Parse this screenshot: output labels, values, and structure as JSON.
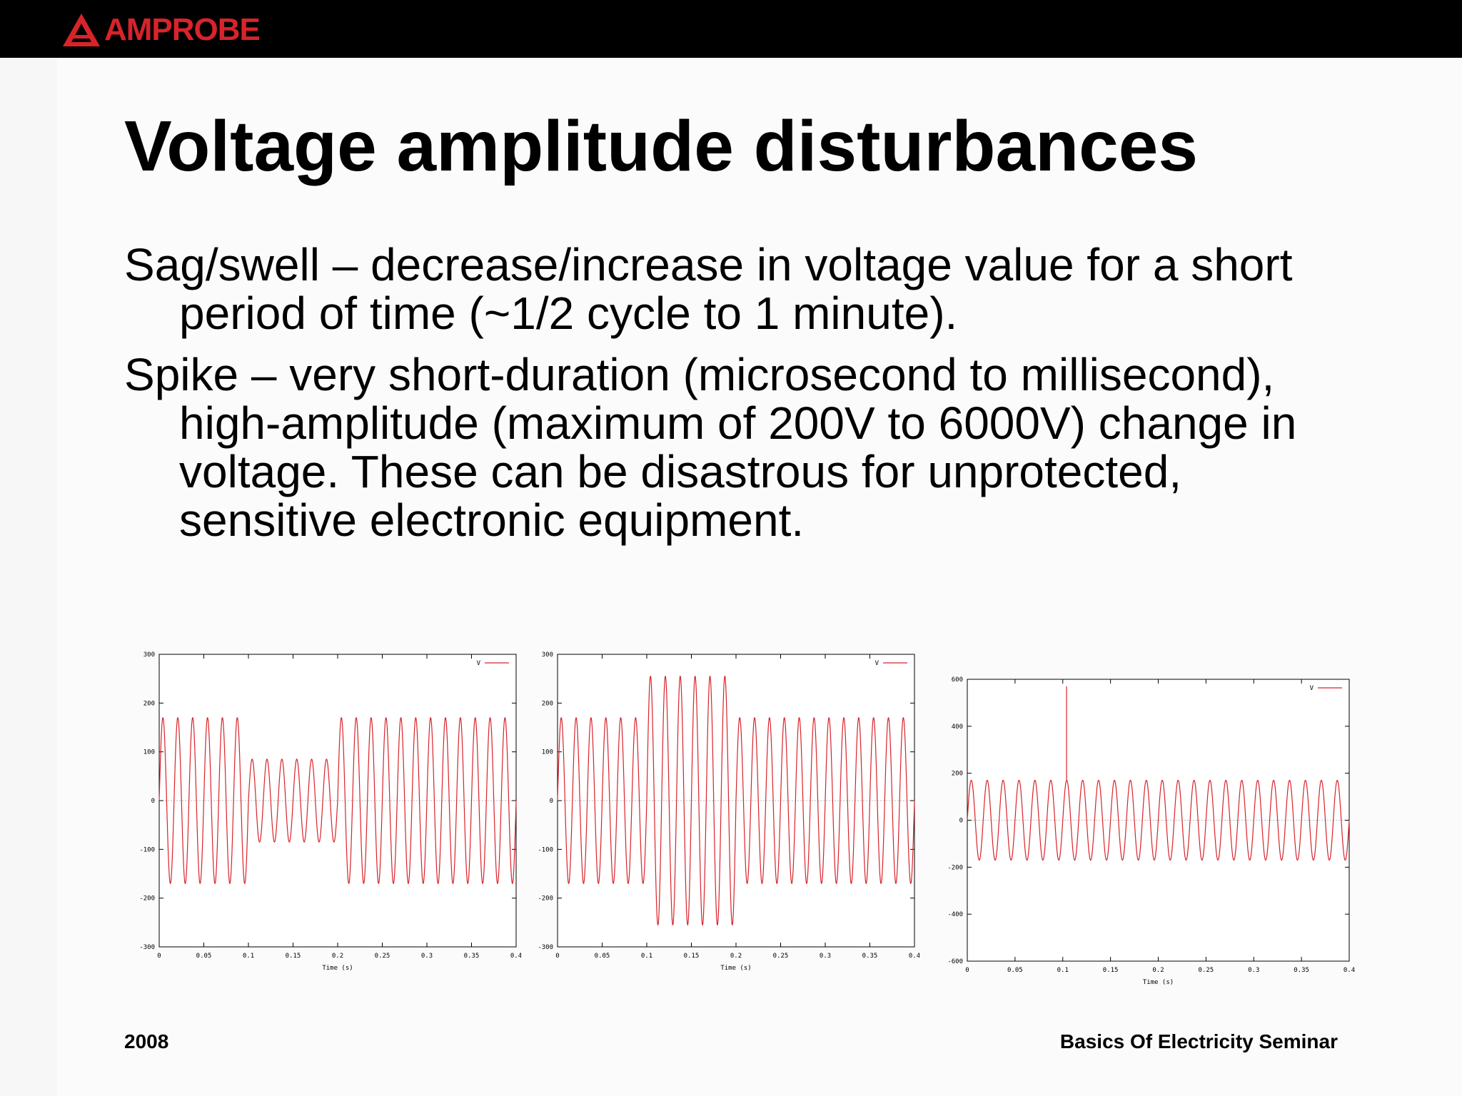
{
  "header": {
    "logo_text": "AMPROBE",
    "brand_color": "#d8232a",
    "logo_icon": "triangle-a-icon"
  },
  "slide": {
    "title": "Voltage amplitude disturbances",
    "bullets": [
      "Sag/swell – decrease/increase in voltage value for a short period of time (~1/2 cycle to 1 minute).",
      "Spike – very short-duration (microsecond to millisecond), high-amplitude (maximum of 200V to 6000V) change in voltage.  These can be disastrous for unprotected, sensitive electronic equipment."
    ]
  },
  "footer": {
    "year": "2008",
    "seminar": "Basics Of Electricity Seminar"
  },
  "chart_data": [
    {
      "type": "line",
      "xlabel": "Time (s)",
      "ylabel": "",
      "xlim": [
        0,
        0.4
      ],
      "ylim": [
        -300,
        300
      ],
      "xticks": [
        "0",
        "0.05",
        "0.1",
        "0.15",
        "0.2",
        "0.25",
        "0.3",
        "0.35",
        "0.4"
      ],
      "yticks": [
        "300",
        "200",
        "100",
        "0",
        "-100",
        "-200",
        "-300"
      ],
      "legend_position": "top-right",
      "series": [
        {
          "name": "V",
          "color": "#d8232a",
          "frequency_hz": 60,
          "nominal_amplitude": 170,
          "event": {
            "kind": "sag",
            "start": 0.1,
            "end": 0.2,
            "amplitude": 85
          }
        }
      ]
    },
    {
      "type": "line",
      "xlabel": "Time (s)",
      "ylabel": "",
      "xlim": [
        0,
        0.4
      ],
      "ylim": [
        -300,
        300
      ],
      "xticks": [
        "0",
        "0.05",
        "0.1",
        "0.15",
        "0.2",
        "0.25",
        "0.3",
        "0.35",
        "0.4"
      ],
      "yticks": [
        "300",
        "200",
        "100",
        "0",
        "-100",
        "-200",
        "-300"
      ],
      "legend_position": "top-right",
      "series": [
        {
          "name": "V",
          "color": "#d8232a",
          "frequency_hz": 60,
          "nominal_amplitude": 170,
          "event": {
            "kind": "swell",
            "start": 0.1,
            "end": 0.2,
            "amplitude": 255
          }
        }
      ]
    },
    {
      "type": "line",
      "xlabel": "Time (s)",
      "ylabel": "",
      "xlim": [
        0,
        0.4
      ],
      "ylim": [
        -600,
        600
      ],
      "xticks": [
        "0",
        "0.05",
        "0.1",
        "0.15",
        "0.2",
        "0.25",
        "0.3",
        "0.35",
        "0.4"
      ],
      "yticks": [
        "600",
        "400",
        "200",
        "0",
        "-200",
        "-400",
        "-600"
      ],
      "legend_position": "top-right",
      "series": [
        {
          "name": "V",
          "color": "#d8232a",
          "frequency_hz": 60,
          "nominal_amplitude": 170,
          "event": {
            "kind": "spike",
            "time": 0.104,
            "peak": 570
          }
        }
      ]
    }
  ]
}
